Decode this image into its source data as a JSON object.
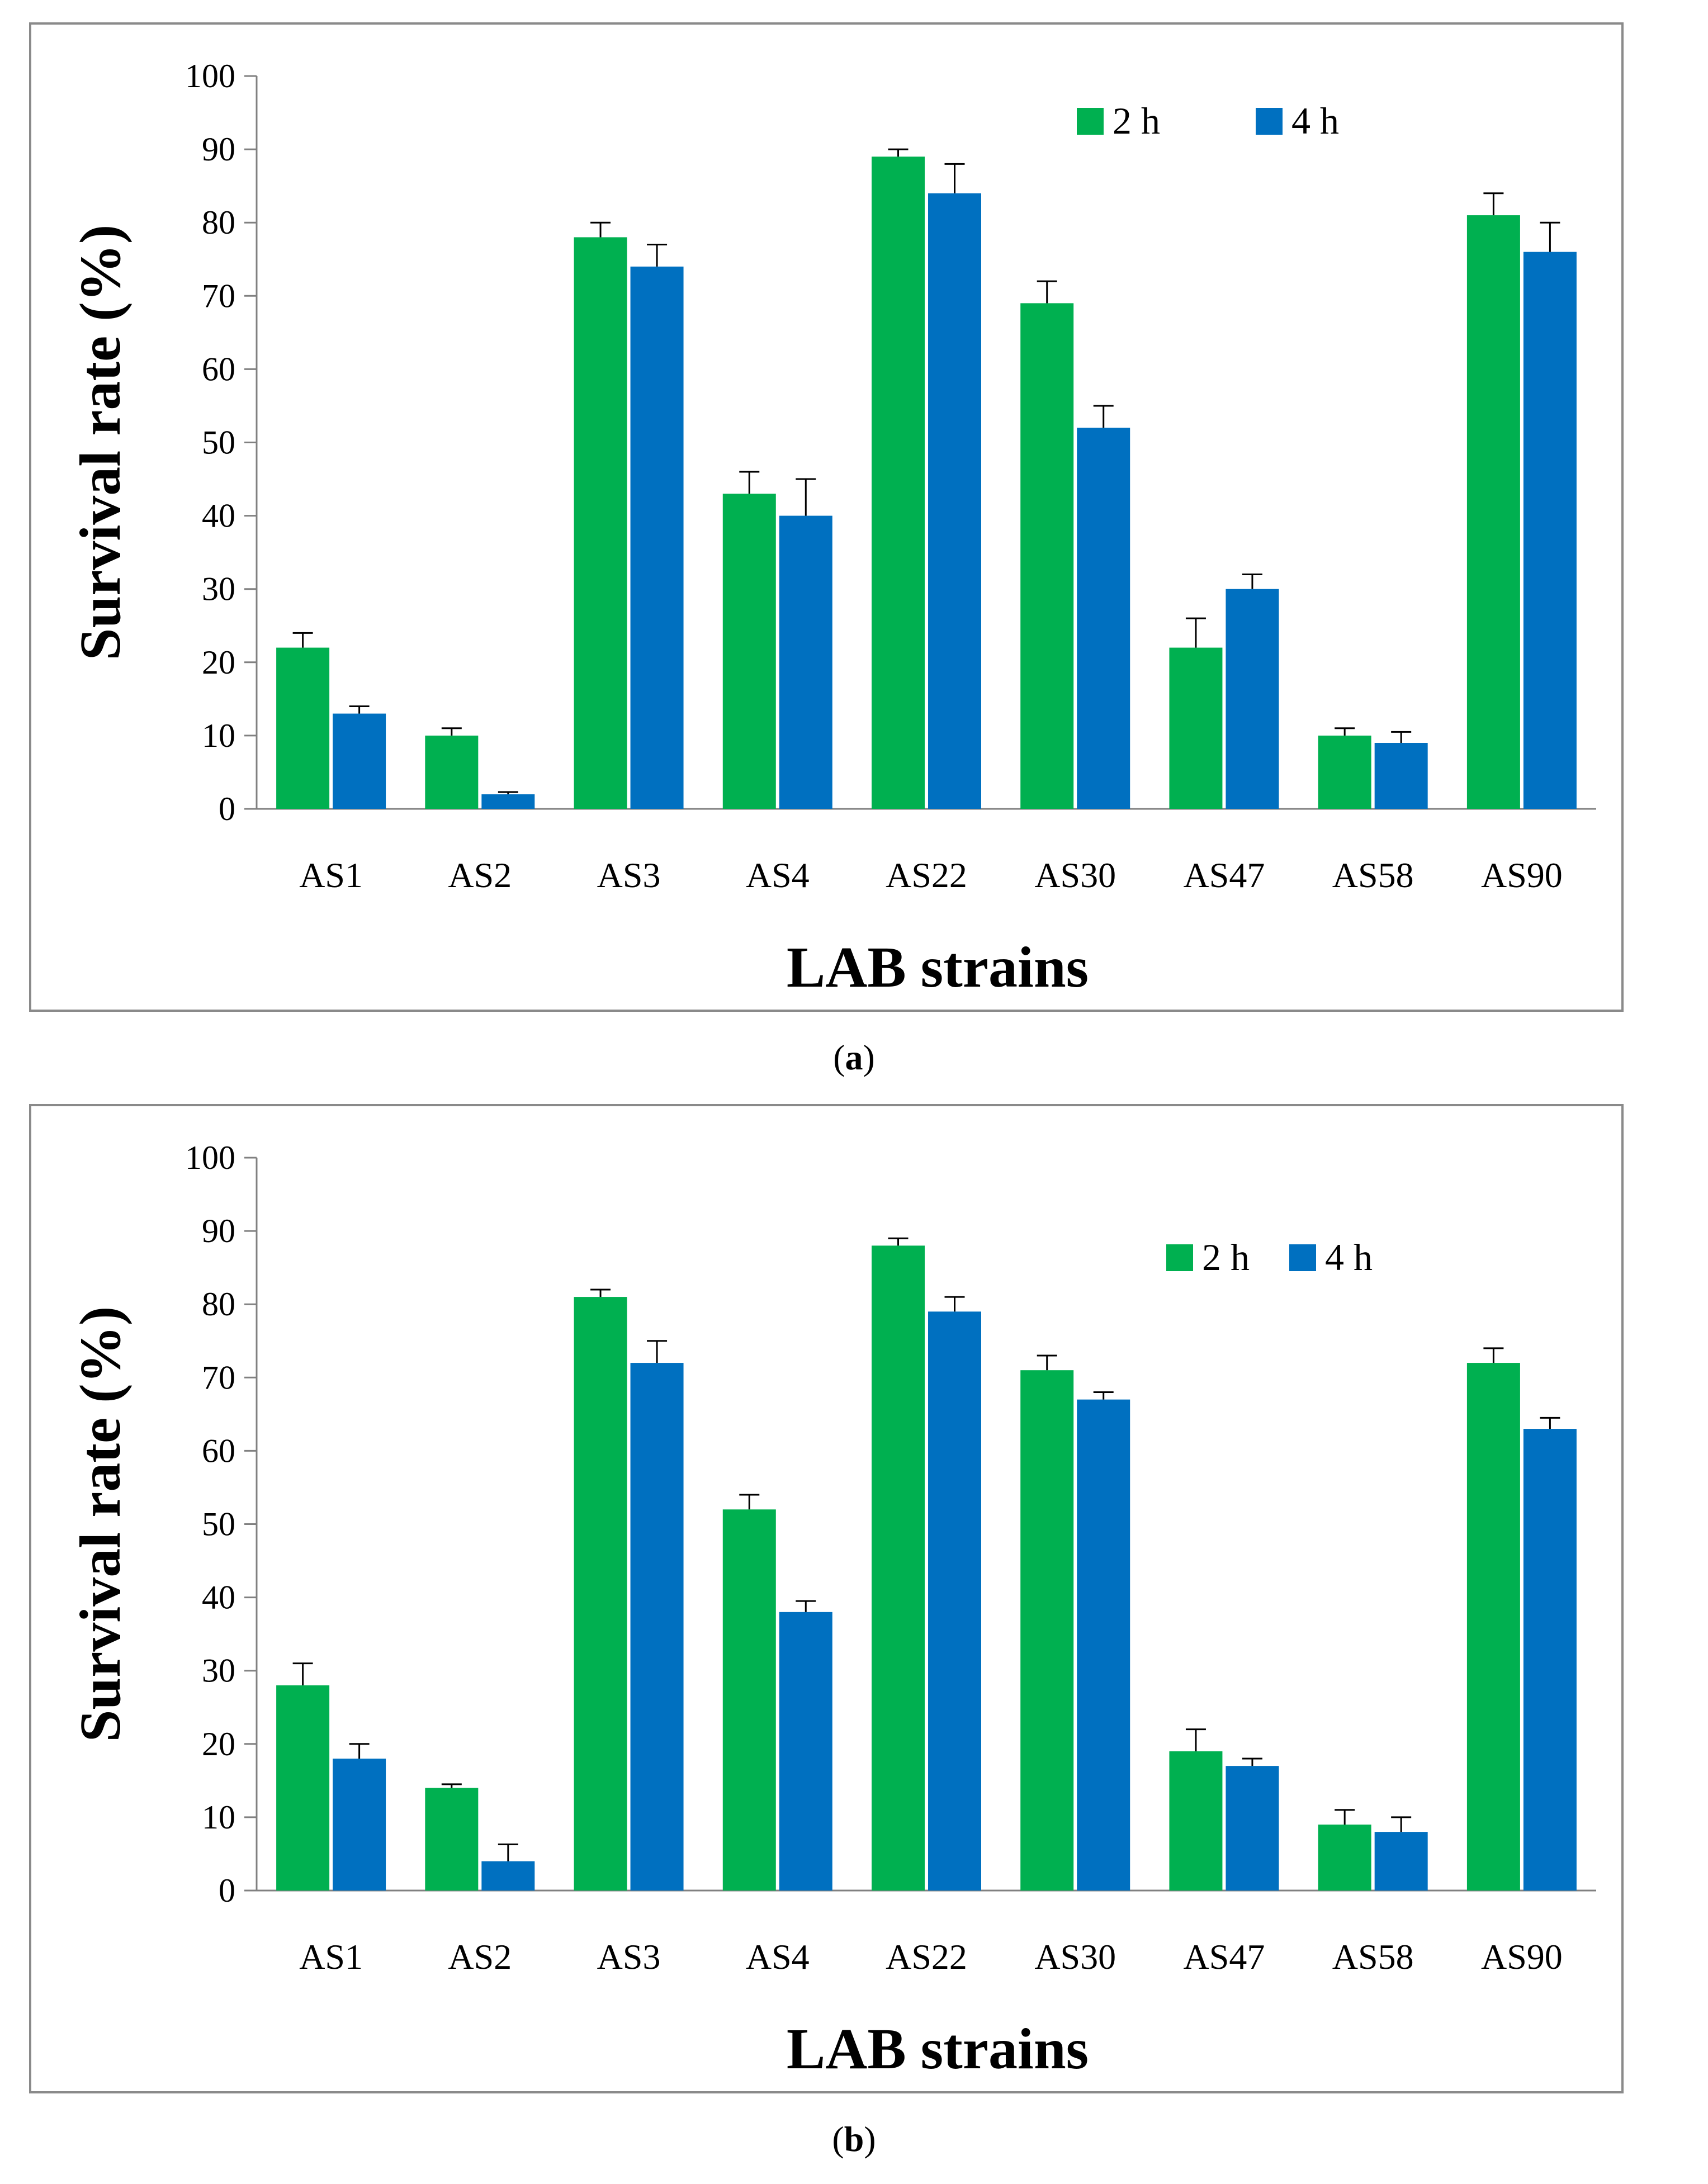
{
  "chart_data": [
    {
      "id": "a",
      "type": "bar",
      "caption_letter": "a",
      "xlabel": "LAB strains",
      "ylabel": "Survival rate (%)",
      "ylim": [
        0,
        100
      ],
      "yticks": [
        0,
        10,
        20,
        30,
        40,
        50,
        60,
        70,
        80,
        90,
        100
      ],
      "categories": [
        "AS1",
        "AS2",
        "AS3",
        "AS4",
        "AS22",
        "AS30",
        "AS47",
        "AS58",
        "AS90"
      ],
      "legend_position": "top-right",
      "series": [
        {
          "name": "2 h",
          "color": "#00b050",
          "values": [
            22,
            10,
            78,
            43,
            89,
            69,
            22,
            10,
            81
          ],
          "errors": [
            2,
            1,
            2,
            3,
            1,
            3,
            4,
            1,
            3
          ]
        },
        {
          "name": "4 h",
          "color": "#0070c0",
          "values": [
            13,
            2,
            74,
            40,
            84,
            52,
            30,
            9,
            76
          ],
          "errors": [
            1,
            0.3,
            3,
            5,
            4,
            3,
            2,
            1.5,
            4
          ]
        }
      ]
    },
    {
      "id": "b",
      "type": "bar",
      "caption_letter": "b",
      "xlabel": "LAB strains",
      "ylabel": "Survival rate (%)",
      "ylim": [
        0,
        100
      ],
      "yticks": [
        0,
        10,
        20,
        30,
        40,
        50,
        60,
        70,
        80,
        90,
        100
      ],
      "categories": [
        "AS1",
        "AS2",
        "AS3",
        "AS4",
        "AS22",
        "AS30",
        "AS47",
        "AS58",
        "AS90"
      ],
      "legend_position": "top-right",
      "series": [
        {
          "name": "2 h",
          "color": "#00b050",
          "values": [
            28,
            14,
            81,
            52,
            88,
            71,
            19,
            9,
            72
          ],
          "errors": [
            3,
            0.5,
            1,
            2,
            1,
            2,
            3,
            2,
            2
          ]
        },
        {
          "name": "4 h",
          "color": "#0070c0",
          "values": [
            18,
            4,
            72,
            38,
            79,
            67,
            17,
            8,
            63
          ],
          "errors": [
            2,
            2.3,
            3,
            1.5,
            2,
            1,
            1,
            2,
            1.5
          ]
        }
      ]
    }
  ]
}
